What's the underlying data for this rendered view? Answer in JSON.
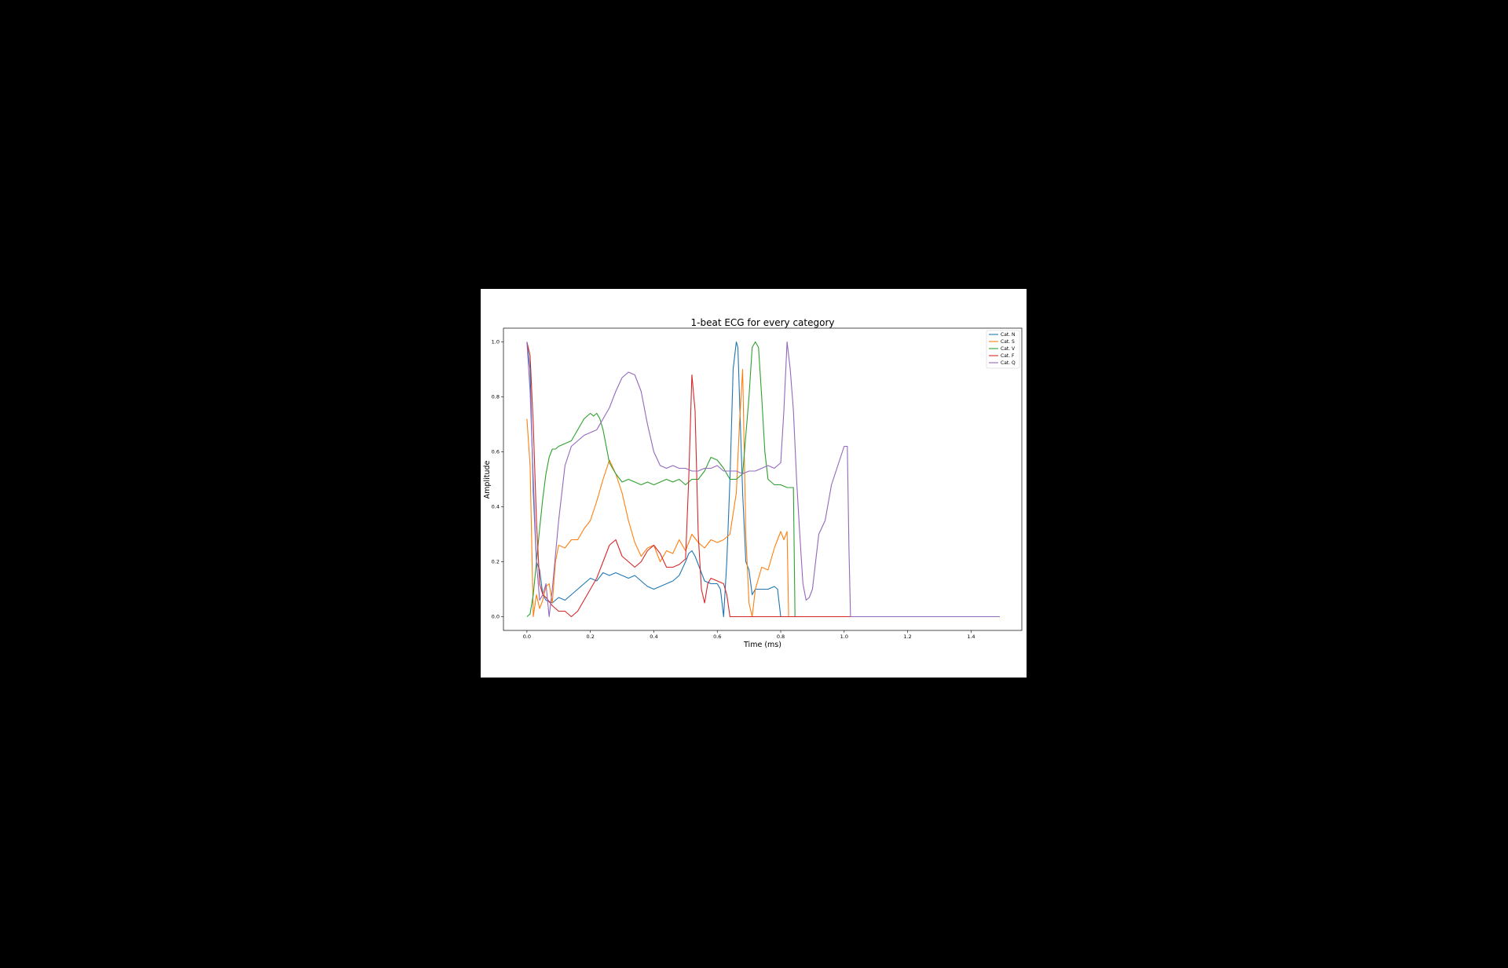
{
  "chart_data": {
    "type": "line",
    "title": "1-beat ECG for every category",
    "xlabel": "Time (ms)",
    "ylabel": "Amplitude",
    "xlim": [
      -0.074,
      1.56
    ],
    "ylim": [
      -0.05,
      1.05
    ],
    "xticks": [
      0.0,
      0.2,
      0.4,
      0.6,
      0.8,
      1.0,
      1.2,
      1.4
    ],
    "xtick_labels": [
      "0.0",
      "0.2",
      "0.4",
      "0.6",
      "0.8",
      "1.0",
      "1.2",
      "1.4"
    ],
    "yticks": [
      0.0,
      0.2,
      0.4,
      0.6,
      0.8,
      1.0
    ],
    "ytick_labels": [
      "0.0",
      "0.2",
      "0.4",
      "0.6",
      "0.8",
      "1.0"
    ],
    "grid": false,
    "legend_position": "top-right",
    "series": [
      {
        "name": "Cat. N",
        "color": "#1f77b4",
        "x": [
          0.0,
          0.01,
          0.02,
          0.03,
          0.04,
          0.05,
          0.06,
          0.08,
          0.1,
          0.12,
          0.14,
          0.16,
          0.18,
          0.2,
          0.22,
          0.24,
          0.26,
          0.28,
          0.3,
          0.32,
          0.34,
          0.36,
          0.38,
          0.4,
          0.42,
          0.44,
          0.46,
          0.48,
          0.5,
          0.51,
          0.52,
          0.53,
          0.54,
          0.56,
          0.58,
          0.6,
          0.61,
          0.62,
          0.63,
          0.64,
          0.65,
          0.66,
          0.665,
          0.67,
          0.68,
          0.69,
          0.7,
          0.71,
          0.72,
          0.74,
          0.76,
          0.78,
          0.79,
          0.8,
          0.81,
          1.49
        ],
        "y": [
          1.0,
          0.9,
          0.45,
          0.2,
          0.17,
          0.08,
          0.06,
          0.05,
          0.07,
          0.06,
          0.08,
          0.1,
          0.12,
          0.14,
          0.13,
          0.16,
          0.15,
          0.16,
          0.15,
          0.14,
          0.15,
          0.13,
          0.11,
          0.1,
          0.11,
          0.12,
          0.13,
          0.15,
          0.2,
          0.23,
          0.24,
          0.22,
          0.19,
          0.13,
          0.12,
          0.12,
          0.1,
          0.0,
          0.2,
          0.5,
          0.9,
          1.0,
          0.98,
          0.8,
          0.45,
          0.2,
          0.17,
          0.08,
          0.1,
          0.1,
          0.1,
          0.11,
          0.1,
          0.0,
          0.0,
          0.0
        ]
      },
      {
        "name": "Cat. S",
        "color": "#ff7f0e",
        "x": [
          0.0,
          0.01,
          0.02,
          0.03,
          0.04,
          0.05,
          0.06,
          0.07,
          0.08,
          0.09,
          0.1,
          0.12,
          0.14,
          0.16,
          0.18,
          0.2,
          0.22,
          0.24,
          0.26,
          0.28,
          0.3,
          0.32,
          0.34,
          0.36,
          0.38,
          0.4,
          0.42,
          0.44,
          0.46,
          0.48,
          0.5,
          0.52,
          0.54,
          0.56,
          0.58,
          0.6,
          0.62,
          0.64,
          0.66,
          0.67,
          0.68,
          0.685,
          0.69,
          0.7,
          0.71,
          0.72,
          0.74,
          0.76,
          0.78,
          0.8,
          0.81,
          0.82,
          0.825,
          0.83,
          1.49
        ],
        "y": [
          0.72,
          0.55,
          0.0,
          0.08,
          0.03,
          0.06,
          0.11,
          0.12,
          0.05,
          0.2,
          0.26,
          0.25,
          0.28,
          0.28,
          0.32,
          0.35,
          0.42,
          0.5,
          0.57,
          0.52,
          0.45,
          0.35,
          0.27,
          0.22,
          0.25,
          0.26,
          0.2,
          0.24,
          0.23,
          0.28,
          0.24,
          0.3,
          0.27,
          0.25,
          0.28,
          0.27,
          0.28,
          0.3,
          0.45,
          0.7,
          0.9,
          0.6,
          0.3,
          0.05,
          0.0,
          0.1,
          0.18,
          0.17,
          0.25,
          0.31,
          0.28,
          0.31,
          0.0,
          0.0,
          0.0
        ]
      },
      {
        "name": "Cat. V",
        "color": "#2ca02c",
        "x": [
          0.0,
          0.01,
          0.02,
          0.03,
          0.04,
          0.05,
          0.06,
          0.07,
          0.08,
          0.09,
          0.1,
          0.12,
          0.14,
          0.16,
          0.18,
          0.2,
          0.21,
          0.22,
          0.23,
          0.24,
          0.25,
          0.26,
          0.28,
          0.3,
          0.32,
          0.34,
          0.36,
          0.38,
          0.4,
          0.42,
          0.44,
          0.46,
          0.48,
          0.5,
          0.52,
          0.54,
          0.56,
          0.58,
          0.6,
          0.62,
          0.64,
          0.66,
          0.68,
          0.7,
          0.71,
          0.72,
          0.73,
          0.74,
          0.75,
          0.76,
          0.78,
          0.8,
          0.82,
          0.83,
          0.84,
          0.845,
          1.49
        ],
        "y": [
          0.0,
          0.01,
          0.08,
          0.2,
          0.32,
          0.43,
          0.52,
          0.58,
          0.61,
          0.61,
          0.62,
          0.63,
          0.64,
          0.68,
          0.72,
          0.74,
          0.73,
          0.74,
          0.72,
          0.68,
          0.62,
          0.56,
          0.52,
          0.49,
          0.5,
          0.49,
          0.48,
          0.49,
          0.48,
          0.49,
          0.5,
          0.49,
          0.5,
          0.48,
          0.5,
          0.5,
          0.53,
          0.58,
          0.57,
          0.54,
          0.5,
          0.5,
          0.52,
          0.8,
          0.98,
          1.0,
          0.98,
          0.8,
          0.6,
          0.5,
          0.48,
          0.48,
          0.47,
          0.47,
          0.47,
          0.0,
          0.0
        ]
      },
      {
        "name": "Cat. F",
        "color": "#d62728",
        "x": [
          0.0,
          0.01,
          0.02,
          0.03,
          0.04,
          0.05,
          0.06,
          0.08,
          0.1,
          0.12,
          0.14,
          0.15,
          0.16,
          0.18,
          0.2,
          0.22,
          0.24,
          0.26,
          0.28,
          0.3,
          0.32,
          0.34,
          0.36,
          0.38,
          0.4,
          0.42,
          0.44,
          0.46,
          0.48,
          0.5,
          0.51,
          0.52,
          0.53,
          0.54,
          0.55,
          0.56,
          0.57,
          0.58,
          0.6,
          0.62,
          0.63,
          0.64,
          0.65,
          1.49
        ],
        "y": [
          1.0,
          0.95,
          0.7,
          0.35,
          0.12,
          0.08,
          0.07,
          0.04,
          0.02,
          0.02,
          0.0,
          0.01,
          0.02,
          0.06,
          0.1,
          0.14,
          0.2,
          0.26,
          0.28,
          0.22,
          0.2,
          0.18,
          0.2,
          0.24,
          0.26,
          0.23,
          0.18,
          0.18,
          0.19,
          0.21,
          0.5,
          0.88,
          0.75,
          0.3,
          0.1,
          0.05,
          0.12,
          0.14,
          0.13,
          0.12,
          0.08,
          0.0,
          0.0,
          0.0
        ]
      },
      {
        "name": "Cat. Q",
        "color": "#9467bd",
        "x": [
          0.0,
          0.01,
          0.02,
          0.03,
          0.04,
          0.05,
          0.06,
          0.07,
          0.08,
          0.1,
          0.12,
          0.14,
          0.16,
          0.18,
          0.2,
          0.22,
          0.24,
          0.26,
          0.28,
          0.3,
          0.32,
          0.34,
          0.36,
          0.38,
          0.4,
          0.42,
          0.44,
          0.46,
          0.48,
          0.5,
          0.52,
          0.54,
          0.56,
          0.58,
          0.6,
          0.62,
          0.64,
          0.66,
          0.68,
          0.7,
          0.72,
          0.74,
          0.76,
          0.78,
          0.8,
          0.81,
          0.82,
          0.83,
          0.84,
          0.85,
          0.86,
          0.87,
          0.88,
          0.89,
          0.9,
          0.92,
          0.94,
          0.96,
          0.98,
          1.0,
          1.01,
          1.015,
          1.02,
          1.49
        ],
        "y": [
          1.0,
          0.82,
          0.5,
          0.2,
          0.06,
          0.08,
          0.12,
          0.0,
          0.1,
          0.35,
          0.55,
          0.62,
          0.64,
          0.66,
          0.67,
          0.68,
          0.72,
          0.76,
          0.82,
          0.87,
          0.89,
          0.88,
          0.82,
          0.7,
          0.6,
          0.55,
          0.54,
          0.55,
          0.54,
          0.54,
          0.53,
          0.53,
          0.54,
          0.54,
          0.55,
          0.53,
          0.53,
          0.53,
          0.52,
          0.53,
          0.53,
          0.54,
          0.55,
          0.54,
          0.56,
          0.75,
          1.0,
          0.9,
          0.75,
          0.5,
          0.3,
          0.12,
          0.06,
          0.07,
          0.1,
          0.3,
          0.35,
          0.48,
          0.55,
          0.62,
          0.62,
          0.25,
          0.0,
          0.0
        ]
      }
    ]
  }
}
